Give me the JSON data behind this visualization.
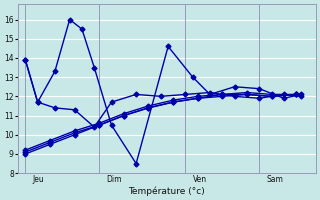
{
  "background_color": "#c8e8e8",
  "grid_color": "#ffffff",
  "line_color": "#0000aa",
  "markersize": 2.5,
  "linewidth": 1.0,
  "xlabel": "Température (°c)",
  "ylim": [
    8,
    16.8
  ],
  "yticks": [
    8,
    9,
    10,
    11,
    12,
    13,
    14,
    15,
    16
  ],
  "day_labels": [
    "Jeu",
    "Dim",
    "Ven",
    "Sam"
  ],
  "vline_positions": [
    0.0,
    3.0,
    6.5,
    9.5
  ],
  "xlim": [
    -0.3,
    11.8
  ],
  "figsize": [
    3.2,
    2.0
  ],
  "dpi": 100,
  "series": [
    {
      "x": [
        0.0,
        0.5,
        1.2,
        1.8,
        2.3,
        2.8,
        3.5,
        4.5,
        5.8,
        6.8,
        7.5,
        8.5,
        9.5,
        10.5,
        11.2
      ],
      "y": [
        13.9,
        11.7,
        13.3,
        16.0,
        15.5,
        13.5,
        10.5,
        8.5,
        14.6,
        13.0,
        12.1,
        12.5,
        12.4,
        11.9,
        12.1
      ]
    },
    {
      "x": [
        0.0,
        0.5,
        1.2,
        2.0,
        2.8,
        3.5,
        4.5,
        5.5,
        6.5,
        7.5,
        8.5,
        9.5,
        10.5,
        11.2
      ],
      "y": [
        13.9,
        11.7,
        11.4,
        11.3,
        10.4,
        11.7,
        12.1,
        12.0,
        12.1,
        12.2,
        12.0,
        11.9,
        12.1,
        12.0
      ]
    },
    {
      "x": [
        0.0,
        1.0,
        2.0,
        3.0,
        4.0,
        5.0,
        6.0,
        7.0,
        8.0,
        9.0,
        10.0,
        11.0
      ],
      "y": [
        9.0,
        9.5,
        10.0,
        10.5,
        11.0,
        11.4,
        11.7,
        11.9,
        12.0,
        12.1,
        12.0,
        12.1
      ]
    },
    {
      "x": [
        0.0,
        1.0,
        2.0,
        3.0,
        4.0,
        5.0,
        6.0,
        7.0,
        8.0,
        9.0,
        10.0,
        11.0
      ],
      "y": [
        9.1,
        9.6,
        10.1,
        10.5,
        11.0,
        11.4,
        11.7,
        11.9,
        12.1,
        12.1,
        12.0,
        12.1
      ]
    },
    {
      "x": [
        0.0,
        1.0,
        2.0,
        3.0,
        4.0,
        5.0,
        6.0,
        7.0,
        8.0,
        9.0,
        10.0,
        11.0
      ],
      "y": [
        9.2,
        9.7,
        10.2,
        10.6,
        11.1,
        11.5,
        11.8,
        12.0,
        12.1,
        12.2,
        12.1,
        12.1
      ]
    }
  ]
}
